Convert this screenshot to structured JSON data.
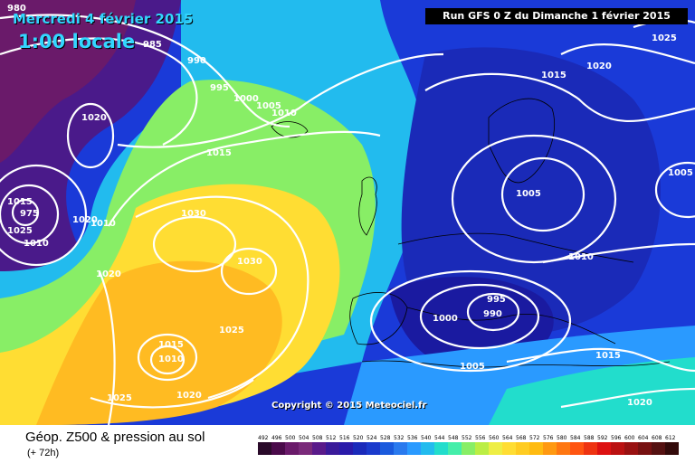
{
  "header": {
    "date": "Mercredi 4 février 2015",
    "time": "1:00 locale",
    "run": "Run GFS 0 Z du Dimanche 1 février 2015"
  },
  "copyright": "Copyright © 2015 Meteociel.fr",
  "footer": {
    "title": "Géop. Z500 & pression au sol",
    "subtitle": "(+ 72h)"
  },
  "legend": {
    "ticks": [
      "492",
      "496",
      "500",
      "504",
      "508",
      "512",
      "516",
      "520",
      "524",
      "528",
      "532",
      "536",
      "540",
      "544",
      "548",
      "552",
      "556",
      "560",
      "564",
      "568",
      "572",
      "576",
      "580",
      "584",
      "588",
      "592",
      "596",
      "600",
      "604",
      "608",
      "612"
    ],
    "colors": [
      "#2a0a2a",
      "#4a0a4a",
      "#6a1a6a",
      "#7a2a7a",
      "#5a1a8a",
      "#3a1a9a",
      "#2a1aaa",
      "#1a2aba",
      "#1a3acc",
      "#1a5add",
      "#2a7aee",
      "#2a9aff",
      "#22bbee",
      "#22ddcc",
      "#44eeaa",
      "#88ee66",
      "#bbee44",
      "#eeee44",
      "#ffdd33",
      "#ffcc22",
      "#ffbb11",
      "#ff9911",
      "#ff7711",
      "#ff5511",
      "#ee3311",
      "#dd1111",
      "#bb1111",
      "#991111",
      "#771111",
      "#551111",
      "#330a0a"
    ]
  },
  "isobar_labels": [
    "985",
    "980",
    "990",
    "995",
    "1000",
    "1005",
    "1010",
    "1015",
    "1020",
    "1025",
    "1030",
    "975",
    "1015",
    "1020",
    "1025",
    "1010",
    "1030",
    "1020",
    "995",
    "990",
    "1005",
    "1010",
    "1015",
    "1020",
    "1025",
    "1000",
    "1005",
    "1015",
    "1005",
    "1010",
    "1020",
    "1015",
    "1020",
    "1010",
    "1025"
  ],
  "colors": {
    "deep_low": "#3a0a4a",
    "blue_low": "#1a2ad0",
    "ridge": "#ffbb22",
    "isobar": "#ffffff"
  }
}
